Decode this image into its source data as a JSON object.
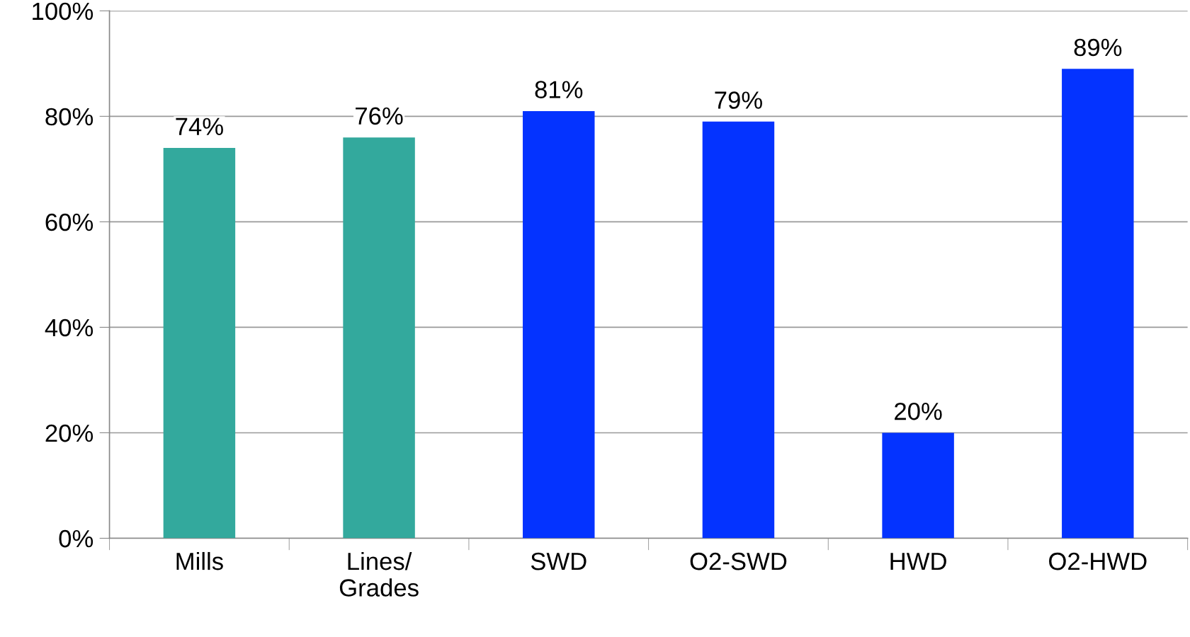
{
  "chart_data": {
    "type": "bar",
    "categories": [
      "Mills",
      "Lines/\nGrades",
      "SWD",
      "O2-SWD",
      "HWD",
      "O2-HWD"
    ],
    "values": [
      74,
      76,
      81,
      79,
      20,
      89
    ],
    "colors": [
      "#33a99d",
      "#33a99d",
      "#0433ff",
      "#0433ff",
      "#0433ff",
      "#0433ff"
    ],
    "value_labels": [
      "74%",
      "76%",
      "81%",
      "79%",
      "20%",
      "89%"
    ],
    "ylim": [
      0,
      100
    ],
    "yticks": [
      {
        "value": 0,
        "label": "0%"
      },
      {
        "value": 20,
        "label": "20%"
      },
      {
        "value": 40,
        "label": "40%"
      },
      {
        "value": 60,
        "label": "60%"
      },
      {
        "value": 80,
        "label": "80%"
      },
      {
        "value": 100,
        "label": "100%"
      }
    ],
    "grid": "y"
  }
}
